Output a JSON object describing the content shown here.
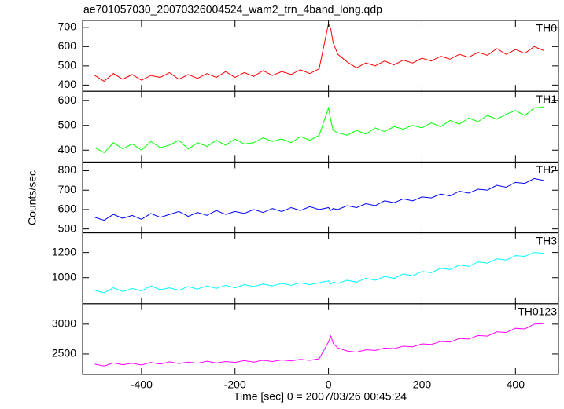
{
  "title": "ae701057030_20070326004524_wam2_trn_4band_long.qdp",
  "ylabel": "Counts/sec",
  "xlabel": "Time [sec] 0 = 2007/03/26 00:45:24",
  "chart_data": [
    {
      "type": "line",
      "label": "TH0",
      "color": "#ff0000",
      "x": [
        -500,
        -480,
        -460,
        -440,
        -420,
        -400,
        -380,
        -360,
        -340,
        -320,
        -300,
        -280,
        -260,
        -240,
        -220,
        -200,
        -180,
        -160,
        -140,
        -120,
        -100,
        -80,
        -60,
        -40,
        -20,
        0,
        5,
        10,
        20,
        40,
        60,
        80,
        100,
        120,
        140,
        160,
        180,
        200,
        220,
        240,
        260,
        280,
        300,
        320,
        340,
        360,
        380,
        400,
        420,
        440,
        460
      ],
      "values": [
        450,
        420,
        460,
        430,
        455,
        425,
        450,
        440,
        465,
        430,
        455,
        435,
        460,
        440,
        470,
        440,
        465,
        445,
        475,
        450,
        470,
        455,
        480,
        460,
        485,
        720,
        690,
        620,
        560,
        520,
        490,
        515,
        500,
        525,
        505,
        530,
        515,
        540,
        525,
        550,
        535,
        560,
        545,
        570,
        555,
        590,
        560,
        585,
        565,
        600,
        580
      ],
      "xlim": [
        -526,
        492
      ],
      "xticks": [
        -400,
        -200,
        0,
        200,
        400
      ],
      "ylim": [
        368,
        736
      ],
      "yticks": [
        400,
        500,
        600,
        700
      ]
    },
    {
      "type": "line",
      "label": "TH1",
      "color": "#00ff00",
      "x": [
        -500,
        -480,
        -460,
        -440,
        -420,
        -400,
        -380,
        -360,
        -340,
        -320,
        -300,
        -280,
        -260,
        -240,
        -220,
        -200,
        -180,
        -160,
        -140,
        -120,
        -100,
        -80,
        -60,
        -40,
        -20,
        0,
        5,
        10,
        20,
        40,
        60,
        80,
        100,
        120,
        140,
        160,
        180,
        200,
        220,
        240,
        260,
        280,
        300,
        320,
        340,
        360,
        380,
        400,
        420,
        440,
        460
      ],
      "values": [
        410,
        390,
        430,
        405,
        425,
        400,
        435,
        410,
        420,
        440,
        405,
        430,
        415,
        440,
        420,
        445,
        425,
        430,
        450,
        435,
        445,
        430,
        455,
        440,
        460,
        570,
        520,
        480,
        470,
        460,
        480,
        465,
        490,
        475,
        495,
        485,
        500,
        490,
        510,
        495,
        520,
        505,
        530,
        515,
        540,
        525,
        545,
        560,
        540,
        570,
        575
      ],
      "xlim": [
        -526,
        492
      ],
      "xticks": [
        -400,
        -200,
        0,
        200,
        400
      ],
      "ylim": [
        352,
        638
      ],
      "yticks": [
        400,
        500,
        600
      ]
    },
    {
      "type": "line",
      "label": "TH2",
      "color": "#0000ff",
      "x": [
        -500,
        -480,
        -460,
        -440,
        -420,
        -400,
        -380,
        -360,
        -340,
        -320,
        -300,
        -280,
        -260,
        -240,
        -220,
        -200,
        -180,
        -160,
        -140,
        -120,
        -100,
        -80,
        -60,
        -40,
        -20,
        0,
        5,
        10,
        20,
        40,
        60,
        80,
        100,
        120,
        140,
        160,
        180,
        200,
        220,
        240,
        260,
        280,
        300,
        320,
        340,
        360,
        380,
        400,
        420,
        440,
        460
      ],
      "values": [
        560,
        545,
        575,
        555,
        570,
        550,
        580,
        560,
        575,
        590,
        565,
        585,
        570,
        595,
        575,
        590,
        580,
        600,
        585,
        605,
        590,
        610,
        595,
        615,
        600,
        610,
        595,
        605,
        600,
        620,
        610,
        630,
        620,
        645,
        635,
        655,
        645,
        665,
        660,
        680,
        670,
        695,
        685,
        705,
        700,
        725,
        715,
        740,
        735,
        760,
        750
      ],
      "xlim": [
        -526,
        492
      ],
      "xticks": [
        -400,
        -200,
        0,
        200,
        400
      ],
      "ylim": [
        480,
        845
      ],
      "yticks": [
        500,
        600,
        700,
        800
      ]
    },
    {
      "type": "line",
      "label": "TH3",
      "color": "#00ffff",
      "x": [
        -500,
        -480,
        -460,
        -440,
        -420,
        -400,
        -380,
        -360,
        -340,
        -320,
        -300,
        -280,
        -260,
        -240,
        -220,
        -200,
        -180,
        -160,
        -140,
        -120,
        -100,
        -80,
        -60,
        -40,
        -20,
        0,
        5,
        10,
        20,
        40,
        60,
        80,
        100,
        120,
        140,
        160,
        180,
        200,
        220,
        240,
        260,
        280,
        300,
        320,
        340,
        360,
        380,
        400,
        420,
        440,
        460
      ],
      "values": [
        900,
        880,
        920,
        890,
        915,
        895,
        935,
        905,
        920,
        900,
        930,
        910,
        935,
        915,
        940,
        920,
        945,
        930,
        950,
        935,
        955,
        940,
        960,
        945,
        960,
        975,
        950,
        965,
        955,
        980,
        965,
        995,
        980,
        1010,
        995,
        1030,
        1015,
        1050,
        1040,
        1075,
        1065,
        1100,
        1090,
        1125,
        1115,
        1150,
        1140,
        1175,
        1170,
        1200,
        1195
      ],
      "xlim": [
        -526,
        492
      ],
      "xticks": [
        -400,
        -200,
        0,
        200,
        400
      ],
      "ylim": [
        794,
        1356
      ],
      "yticks": [
        1000,
        1200
      ]
    },
    {
      "type": "line",
      "label": "TH0123",
      "color": "#ff00ff",
      "x": [
        -500,
        -480,
        -460,
        -440,
        -420,
        -400,
        -380,
        -360,
        -340,
        -320,
        -300,
        -280,
        -260,
        -240,
        -220,
        -200,
        -180,
        -160,
        -140,
        -120,
        -100,
        -80,
        -60,
        -40,
        -20,
        0,
        5,
        10,
        20,
        40,
        60,
        80,
        100,
        120,
        140,
        160,
        180,
        200,
        220,
        240,
        260,
        280,
        300,
        320,
        340,
        360,
        380,
        400,
        420,
        440,
        460
      ],
      "values": [
        2330,
        2300,
        2350,
        2320,
        2345,
        2315,
        2360,
        2330,
        2370,
        2340,
        2365,
        2345,
        2380,
        2350,
        2375,
        2360,
        2390,
        2365,
        2395,
        2375,
        2400,
        2385,
        2410,
        2395,
        2420,
        2700,
        2800,
        2680,
        2600,
        2550,
        2530,
        2570,
        2560,
        2600,
        2590,
        2630,
        2620,
        2670,
        2660,
        2710,
        2700,
        2760,
        2750,
        2810,
        2800,
        2870,
        2860,
        2930,
        2920,
        3000,
        3010
      ],
      "xlim": [
        -526,
        492
      ],
      "xticks": [
        -400,
        -200,
        0,
        200,
        400
      ],
      "ylim": [
        2158,
        3342
      ],
      "yticks": [
        2500,
        3000
      ]
    }
  ]
}
